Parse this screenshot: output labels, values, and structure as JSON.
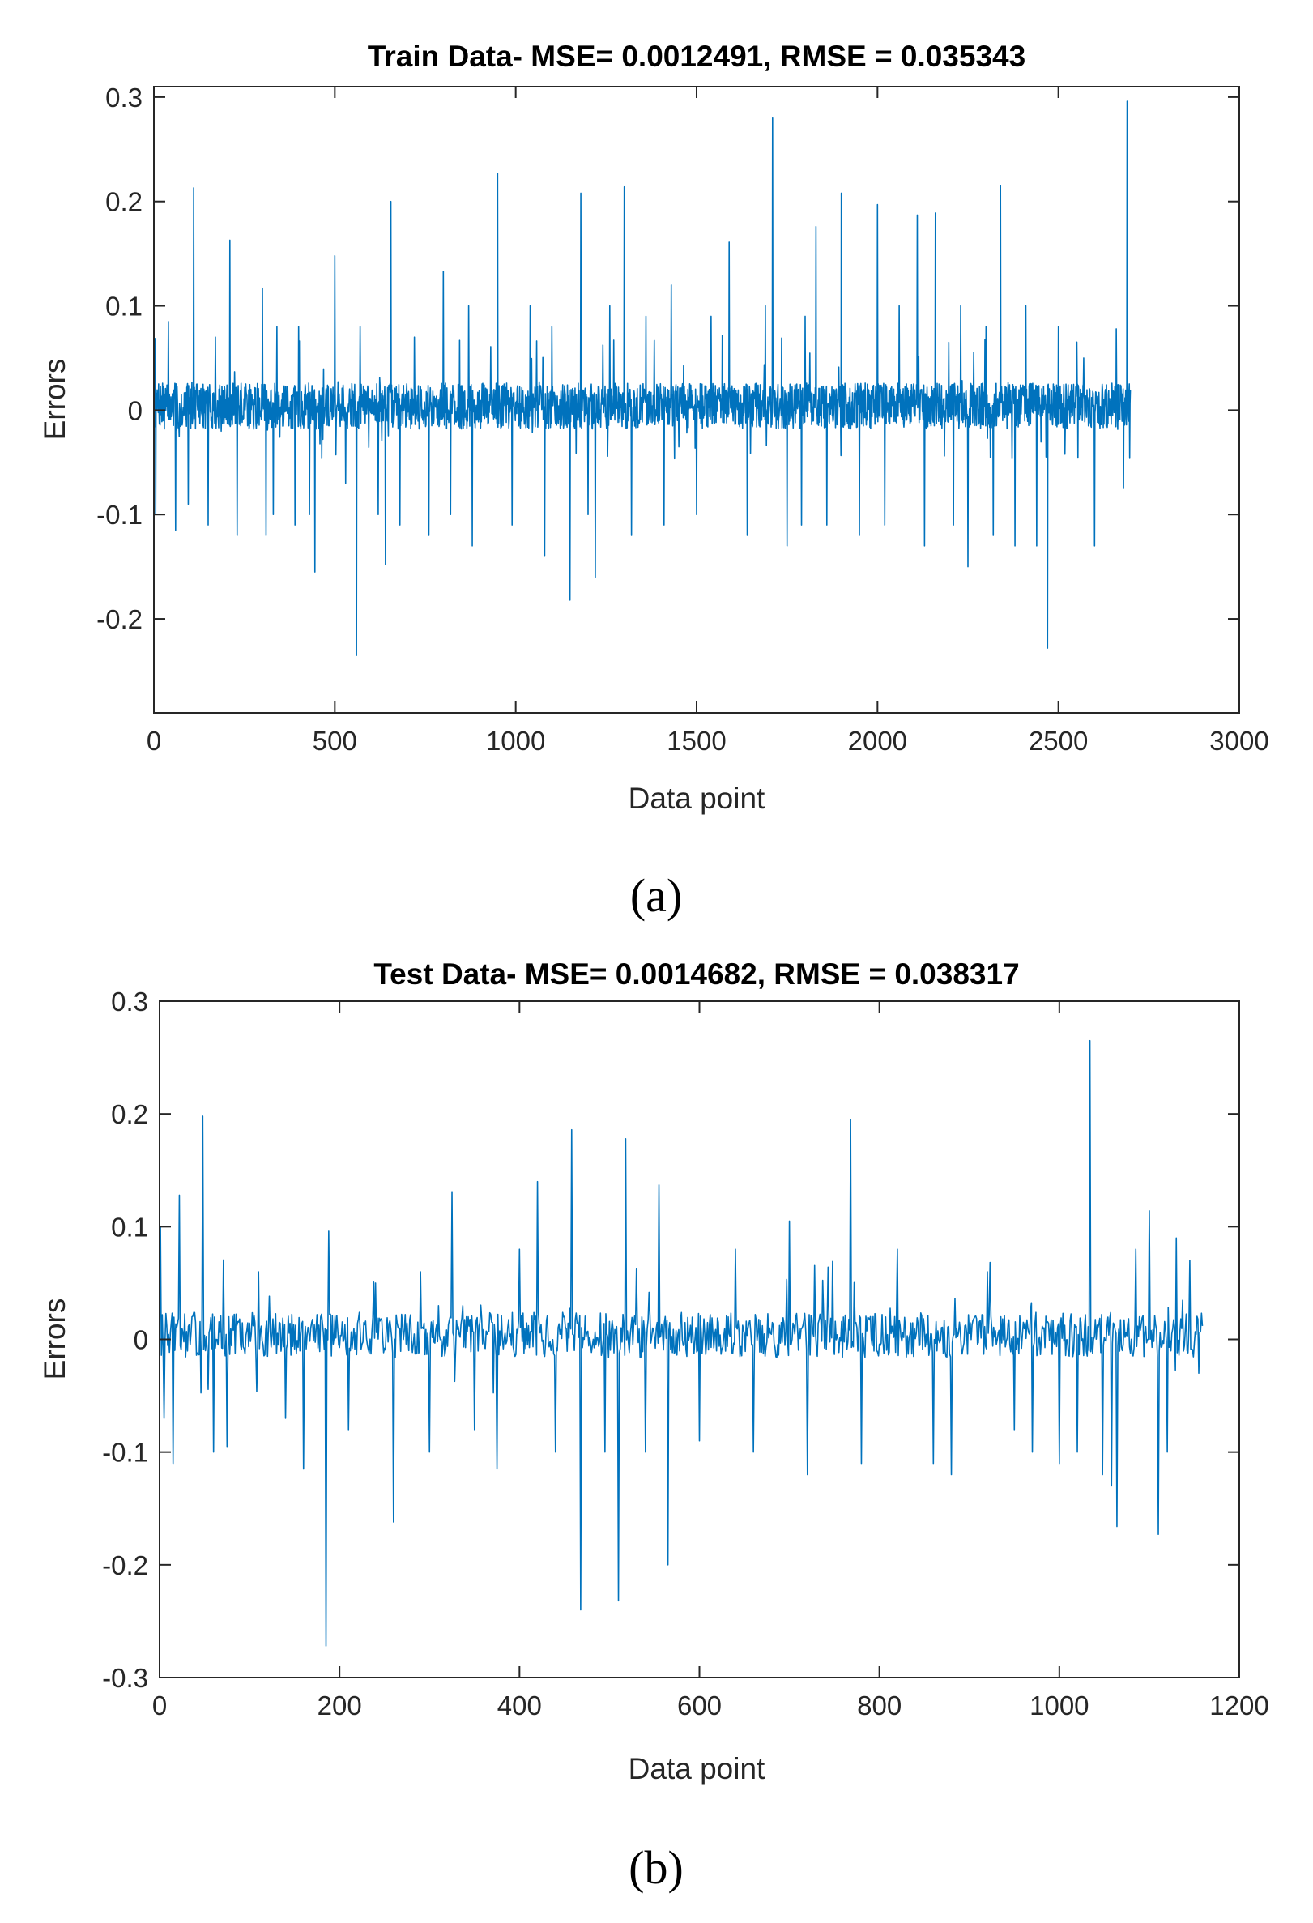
{
  "chart_data": [
    {
      "type": "line",
      "title": "Train Data- MSE= 0.0012491, RMSE = 0.035343",
      "xlabel": "Data point",
      "ylabel": "Errors",
      "xlim": [
        0,
        3000
      ],
      "ylim": [
        -0.29,
        0.31
      ],
      "xticks": [
        0,
        500,
        1000,
        1500,
        2000,
        2500,
        3000
      ],
      "xtick_labels": [
        "0",
        "500",
        "1000",
        "1500",
        "2000",
        "2500",
        "3000"
      ],
      "yticks": [
        -0.2,
        -0.1,
        0,
        0.1,
        0.2,
        0.3
      ],
      "ytick_labels": [
        "-0.2",
        "-0.1",
        "0",
        "0.1",
        "0.2",
        "0.3"
      ],
      "grid": false,
      "series_color": "#0072BD",
      "n_points": 2700,
      "noise_amplitude": 0.022,
      "seed": 7,
      "spikes": [
        [
          5,
          -0.1
        ],
        [
          40,
          0.085
        ],
        [
          60,
          -0.115
        ],
        [
          95,
          -0.09
        ],
        [
          110,
          0.213
        ],
        [
          150,
          -0.11
        ],
        [
          170,
          0.07
        ],
        [
          210,
          0.163
        ],
        [
          230,
          -0.12
        ],
        [
          300,
          0.117
        ],
        [
          310,
          -0.12
        ],
        [
          330,
          -0.1
        ],
        [
          340,
          0.08
        ],
        [
          390,
          -0.11
        ],
        [
          400,
          0.08
        ],
        [
          430,
          -0.1
        ],
        [
          445,
          -0.155
        ],
        [
          500,
          0.148
        ],
        [
          530,
          -0.07
        ],
        [
          560,
          -0.235
        ],
        [
          570,
          0.08
        ],
        [
          620,
          -0.1
        ],
        [
          640,
          -0.148
        ],
        [
          655,
          0.2
        ],
        [
          680,
          -0.11
        ],
        [
          720,
          0.07
        ],
        [
          760,
          -0.12
        ],
        [
          800,
          0.133
        ],
        [
          820,
          -0.1
        ],
        [
          870,
          0.1
        ],
        [
          880,
          -0.13
        ],
        [
          950,
          0.227
        ],
        [
          990,
          -0.11
        ],
        [
          1040,
          0.1
        ],
        [
          1080,
          -0.14
        ],
        [
          1100,
          0.08
        ],
        [
          1150,
          -0.182
        ],
        [
          1180,
          0.208
        ],
        [
          1200,
          -0.1
        ],
        [
          1220,
          -0.16
        ],
        [
          1260,
          0.1
        ],
        [
          1300,
          0.214
        ],
        [
          1320,
          -0.12
        ],
        [
          1360,
          0.09
        ],
        [
          1410,
          -0.11
        ],
        [
          1430,
          0.12
        ],
        [
          1500,
          -0.1
        ],
        [
          1540,
          0.09
        ],
        [
          1590,
          0.161
        ],
        [
          1640,
          -0.12
        ],
        [
          1690,
          0.1
        ],
        [
          1710,
          0.28
        ],
        [
          1750,
          -0.13
        ],
        [
          1790,
          -0.11
        ],
        [
          1800,
          0.09
        ],
        [
          1830,
          0.176
        ],
        [
          1860,
          -0.11
        ],
        [
          1900,
          0.208
        ],
        [
          1950,
          -0.12
        ],
        [
          2000,
          0.197
        ],
        [
          2020,
          -0.11
        ],
        [
          2060,
          0.1
        ],
        [
          2110,
          0.187
        ],
        [
          2130,
          -0.13
        ],
        [
          2160,
          0.189
        ],
        [
          2210,
          -0.11
        ],
        [
          2230,
          0.1
        ],
        [
          2250,
          -0.15
        ],
        [
          2300,
          0.08
        ],
        [
          2320,
          -0.12
        ],
        [
          2340,
          0.215
        ],
        [
          2380,
          -0.13
        ],
        [
          2410,
          0.1
        ],
        [
          2440,
          -0.13
        ],
        [
          2470,
          -0.228
        ],
        [
          2500,
          0.08
        ],
        [
          2570,
          0.05
        ],
        [
          2600,
          -0.13
        ],
        [
          2660,
          0.078
        ],
        [
          2680,
          -0.075
        ],
        [
          2690,
          0.296
        ]
      ],
      "caption": "(a)"
    },
    {
      "type": "line",
      "title": "Test Data- MSE= 0.0014682, RMSE = 0.038317",
      "xlabel": "Data point",
      "ylabel": "Errors",
      "xlim": [
        0,
        1200
      ],
      "ylim": [
        -0.3,
        0.3
      ],
      "xticks": [
        0,
        200,
        400,
        600,
        800,
        1000,
        1200
      ],
      "xtick_labels": [
        "0",
        "200",
        "400",
        "600",
        "800",
        "1000",
        "1200"
      ],
      "yticks": [
        -0.3,
        -0.2,
        -0.1,
        0,
        0.1,
        0.2,
        0.3
      ],
      "ytick_labels": [
        "-0.3",
        "-0.2",
        "-0.1",
        "0",
        "0.1",
        "0.2",
        "0.3"
      ],
      "grid": false,
      "series_color": "#0072BD",
      "n_points": 1160,
      "noise_amplitude": 0.02,
      "seed": 13,
      "spikes": [
        [
          1,
          0.1
        ],
        [
          5,
          -0.07
        ],
        [
          15,
          -0.11
        ],
        [
          22,
          0.128
        ],
        [
          48,
          0.198
        ],
        [
          60,
          -0.1
        ],
        [
          75,
          -0.095
        ],
        [
          110,
          0.06
        ],
        [
          140,
          -0.07
        ],
        [
          160,
          -0.115
        ],
        [
          185,
          -0.272
        ],
        [
          188,
          0.096
        ],
        [
          210,
          -0.08
        ],
        [
          240,
          0.05
        ],
        [
          260,
          -0.162
        ],
        [
          290,
          0.06
        ],
        [
          300,
          -0.1
        ],
        [
          325,
          0.131
        ],
        [
          350,
          -0.08
        ],
        [
          375,
          -0.115
        ],
        [
          400,
          0.08
        ],
        [
          420,
          0.14
        ],
        [
          440,
          -0.1
        ],
        [
          458,
          0.186
        ],
        [
          468,
          -0.24
        ],
        [
          495,
          -0.1
        ],
        [
          510,
          -0.232
        ],
        [
          518,
          0.178
        ],
        [
          540,
          -0.1
        ],
        [
          555,
          0.137
        ],
        [
          565,
          -0.2
        ],
        [
          600,
          -0.09
        ],
        [
          640,
          0.08
        ],
        [
          660,
          -0.1
        ],
        [
          700,
          0.105
        ],
        [
          720,
          -0.12
        ],
        [
          768,
          0.195
        ],
        [
          780,
          -0.11
        ],
        [
          820,
          0.08
        ],
        [
          860,
          -0.11
        ],
        [
          880,
          -0.12
        ],
        [
          920,
          0.06
        ],
        [
          950,
          -0.08
        ],
        [
          970,
          -0.1
        ],
        [
          1000,
          -0.11
        ],
        [
          1020,
          -0.1
        ],
        [
          1034,
          0.265
        ],
        [
          1048,
          -0.12
        ],
        [
          1058,
          -0.13
        ],
        [
          1064,
          -0.166
        ],
        [
          1085,
          0.08
        ],
        [
          1100,
          0.114
        ],
        [
          1110,
          -0.173
        ],
        [
          1120,
          -0.1
        ],
        [
          1130,
          0.09
        ],
        [
          1145,
          0.07
        ],
        [
          1155,
          -0.03
        ]
      ],
      "caption": "(b)"
    }
  ]
}
